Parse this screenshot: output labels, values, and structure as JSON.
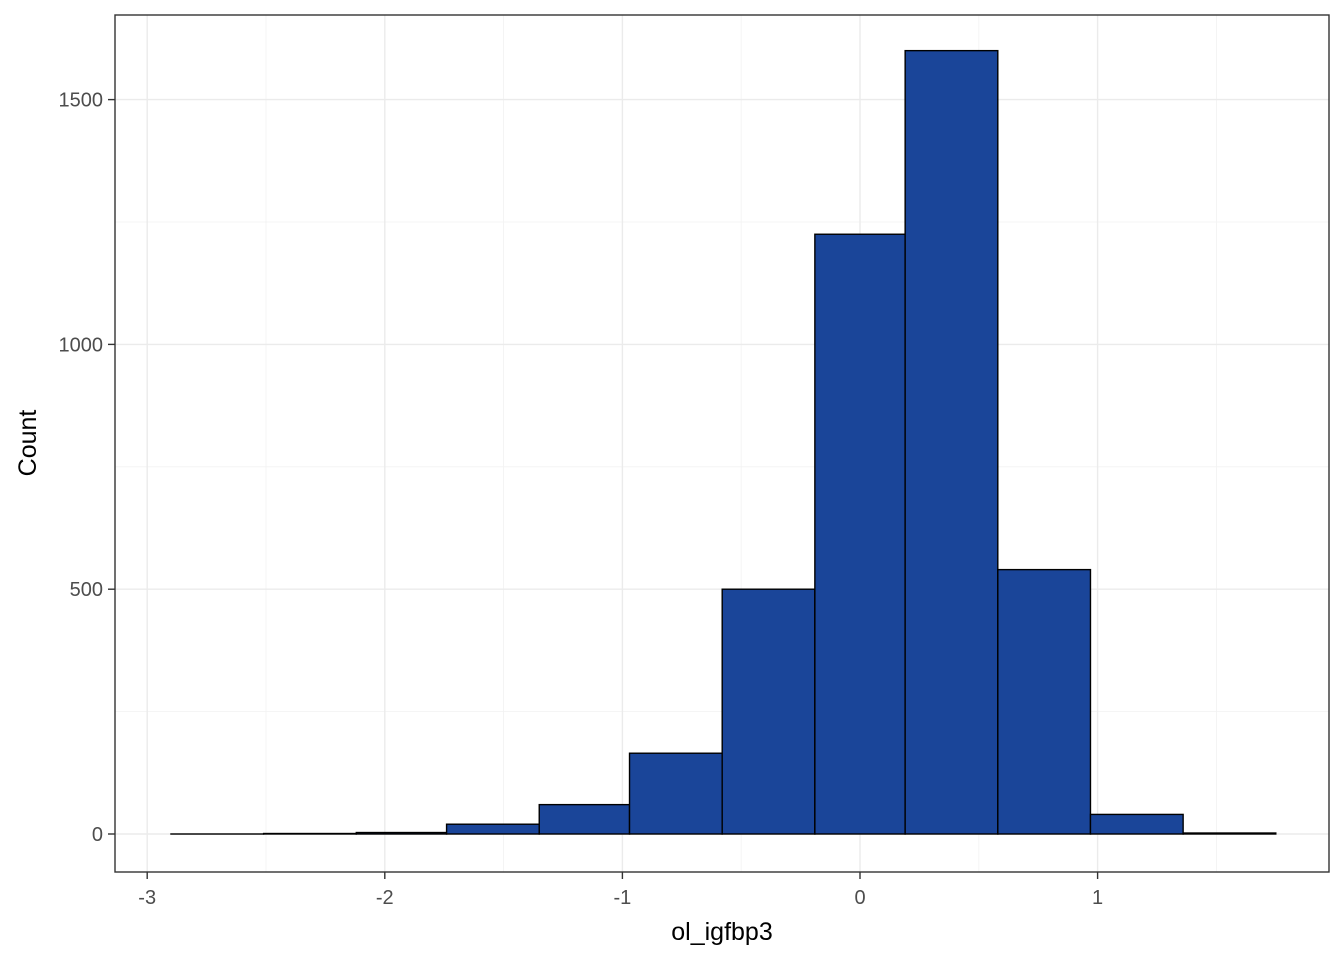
{
  "chart_data": {
    "type": "bar",
    "subtype": "histogram",
    "title": "",
    "xlabel": "ol_igfbp3",
    "ylabel": "Count",
    "xlim": [
      -3.0,
      1.85
    ],
    "ylim": [
      -80,
      1665
    ],
    "x_ticks": [
      -3,
      -2,
      -1,
      0,
      1
    ],
    "y_ticks": [
      0,
      500,
      1000,
      1500
    ],
    "x_tick_labels": [
      "-3",
      "-2",
      "-1",
      "0",
      "1"
    ],
    "y_tick_labels": [
      "0",
      "500",
      "1000",
      "1500"
    ],
    "bins": [
      {
        "x0": -2.9,
        "x1": -2.51,
        "count": 0
      },
      {
        "x0": -2.51,
        "x1": -2.12,
        "count": 1
      },
      {
        "x0": -2.12,
        "x1": -1.74,
        "count": 3
      },
      {
        "x0": -1.74,
        "x1": -1.35,
        "count": 20
      },
      {
        "x0": -1.35,
        "x1": -0.97,
        "count": 60
      },
      {
        "x0": -0.97,
        "x1": -0.58,
        "count": 165
      },
      {
        "x0": -0.58,
        "x1": -0.19,
        "count": 500
      },
      {
        "x0": -0.19,
        "x1": 0.19,
        "count": 1225
      },
      {
        "x0": 0.19,
        "x1": 0.58,
        "count": 1600
      },
      {
        "x0": 0.58,
        "x1": 0.97,
        "count": 540
      },
      {
        "x0": 0.97,
        "x1": 1.36,
        "count": 40
      },
      {
        "x0": 1.36,
        "x1": 1.75,
        "count": 2
      }
    ],
    "fill_color": "#1a4599",
    "grid": true,
    "legend": "none"
  }
}
